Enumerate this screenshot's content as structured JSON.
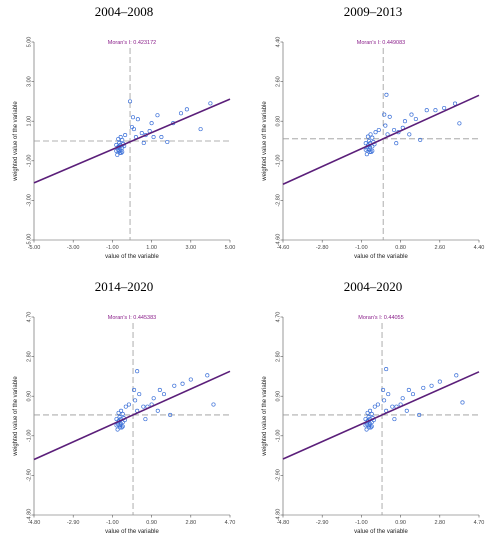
{
  "chart_data": [
    {
      "type": "scatter",
      "title": "2004–2008",
      "annotation": "Moran's I: 0.423172",
      "xlabel": "value of the variable",
      "ylabel": "weighted value of the variable",
      "xlim": [
        -5.0,
        5.0
      ],
      "ylim": [
        -5.0,
        5.0
      ],
      "xticks": [
        "-5.00",
        "-3.00",
        "-1.00",
        "1.00",
        "3.00",
        "5.00"
      ],
      "yticks": [
        "5.00",
        "3.00",
        "1.00",
        "-1.00",
        "-3.00",
        "-5.00"
      ],
      "slope": 0.423172,
      "x_ref": -0.1,
      "y_ref": 0.0,
      "x": [
        -0.8,
        -0.7,
        -0.75,
        -0.6,
        -0.65,
        -0.5,
        -0.55,
        -0.7,
        -0.45,
        -0.6,
        -0.8,
        -0.5,
        -0.65,
        -0.72,
        -0.58,
        -0.4,
        -0.62,
        -0.5,
        -0.68,
        -0.35,
        0.1,
        0.3,
        0.5,
        0.2,
        0.7,
        1.0,
        1.3,
        0.6,
        0.9,
        1.5,
        2.1,
        2.5,
        2.8,
        3.5,
        4.0,
        0.05,
        -0.1,
        0.0,
        1.1,
        1.8
      ],
      "y": [
        -0.5,
        -0.3,
        -0.7,
        -0.2,
        -0.5,
        -0.35,
        -0.6,
        0.1,
        -0.15,
        -0.4,
        -0.2,
        -0.55,
        -0.1,
        -0.45,
        0.2,
        -0.25,
        -0.6,
        0.05,
        -0.3,
        0.3,
        0.6,
        1.1,
        0.4,
        0.2,
        0.3,
        0.9,
        1.3,
        -0.1,
        0.5,
        0.2,
        0.9,
        1.4,
        1.6,
        0.6,
        1.9,
        1.2,
        2.0,
        0.7,
        0.2,
        -0.05
      ]
    },
    {
      "type": "scatter",
      "title": "2009–2013",
      "annotation": "Moran's I: 0.449083",
      "xlabel": "value of the variable",
      "ylabel": "weighted value of the variable",
      "xlim": [
        -4.6,
        4.4
      ],
      "ylim": [
        -4.6,
        4.4
      ],
      "xticks": [
        "-4.60",
        "-2.80",
        "-1.00",
        "0.80",
        "2.60",
        "4.40"
      ],
      "yticks": [
        "4.40",
        "2.60",
        "0.80",
        "-1.00",
        "-2.80",
        "-4.60"
      ],
      "slope": 0.449083,
      "x_ref": 0.0,
      "y_ref": 0.0,
      "x": [
        -0.8,
        -0.7,
        -0.75,
        -0.6,
        -0.65,
        -0.5,
        -0.55,
        -0.7,
        -0.45,
        -0.6,
        -0.8,
        -0.5,
        -0.65,
        -0.72,
        -0.58,
        -0.4,
        -0.62,
        -0.5,
        -0.68,
        -0.35,
        0.1,
        0.3,
        0.5,
        0.2,
        0.7,
        1.0,
        1.3,
        0.6,
        0.9,
        1.5,
        2.0,
        2.4,
        2.8,
        3.3,
        3.5,
        0.05,
        0.15,
        1.2,
        1.7,
        -0.2
      ],
      "y": [
        -0.5,
        -0.3,
        -0.7,
        -0.2,
        -0.5,
        -0.35,
        -0.6,
        0.1,
        -0.15,
        -0.4,
        -0.2,
        -0.55,
        -0.1,
        -0.45,
        0.2,
        -0.25,
        -0.6,
        0.05,
        -0.3,
        0.3,
        0.6,
        1.0,
        0.4,
        0.2,
        0.3,
        0.8,
        1.1,
        -0.2,
        0.5,
        0.9,
        1.3,
        1.3,
        1.4,
        1.6,
        0.7,
        1.1,
        2.0,
        0.2,
        -0.05,
        0.4
      ]
    },
    {
      "type": "scatter",
      "title": "2014–2020",
      "annotation": "Moran's I: 0.445383",
      "xlabel": "value of the variable",
      "ylabel": "weighted value of the variable",
      "xlim": [
        -4.8,
        4.7
      ],
      "ylim": [
        -4.8,
        4.7
      ],
      "xticks": [
        "-4.80",
        "-2.90",
        "-1.00",
        "0.90",
        "2.80",
        "4.70"
      ],
      "yticks": [
        "4.70",
        "2.80",
        "0.90",
        "-1.00",
        "-2.90",
        "-4.80"
      ],
      "slope": 0.445383,
      "x_ref": 0.0,
      "y_ref": 0.0,
      "x": [
        -0.8,
        -0.7,
        -0.75,
        -0.6,
        -0.65,
        -0.5,
        -0.55,
        -0.7,
        -0.45,
        -0.6,
        -0.8,
        -0.5,
        -0.65,
        -0.72,
        -0.58,
        -0.4,
        -0.62,
        -0.5,
        -0.68,
        -0.35,
        0.1,
        0.3,
        0.5,
        0.2,
        0.7,
        1.0,
        1.3,
        0.6,
        0.9,
        1.5,
        2.0,
        2.4,
        2.8,
        3.6,
        3.9,
        0.05,
        0.2,
        1.2,
        1.8,
        -0.2
      ],
      "y": [
        -0.5,
        -0.3,
        -0.7,
        -0.2,
        -0.5,
        -0.35,
        -0.6,
        0.1,
        -0.15,
        -0.4,
        -0.2,
        -0.55,
        -0.1,
        -0.45,
        0.2,
        -0.25,
        -0.6,
        0.05,
        -0.3,
        0.4,
        0.7,
        1.0,
        0.4,
        0.2,
        0.4,
        0.8,
        1.2,
        -0.2,
        0.5,
        1.0,
        1.4,
        1.5,
        1.7,
        1.9,
        0.5,
        1.2,
        2.1,
        0.2,
        0.0,
        0.5
      ]
    },
    {
      "type": "scatter",
      "title": "2004–2020",
      "annotation": "Moran's I: 0.44055",
      "xlabel": "value of the variable",
      "ylabel": "weighted value of the variable",
      "xlim": [
        -4.8,
        4.7
      ],
      "ylim": [
        -4.8,
        4.7
      ],
      "xticks": [
        "-4.80",
        "-2.90",
        "-1.00",
        "0.90",
        "2.80",
        "4.70"
      ],
      "yticks": [
        "4.70",
        "2.80",
        "0.90",
        "-1.00",
        "-2.90",
        "-4.80"
      ],
      "slope": 0.44055,
      "x_ref": 0.0,
      "y_ref": 0.0,
      "x": [
        -0.8,
        -0.7,
        -0.75,
        -0.6,
        -0.65,
        -0.5,
        -0.55,
        -0.7,
        -0.45,
        -0.6,
        -0.8,
        -0.5,
        -0.65,
        -0.72,
        -0.58,
        -0.4,
        -0.62,
        -0.5,
        -0.68,
        -0.35,
        0.1,
        0.3,
        0.5,
        0.2,
        0.7,
        1.0,
        1.3,
        0.6,
        0.9,
        1.5,
        2.0,
        2.4,
        2.8,
        3.6,
        3.9,
        0.05,
        0.2,
        1.2,
        1.8,
        -0.2
      ],
      "y": [
        -0.5,
        -0.3,
        -0.7,
        -0.2,
        -0.5,
        -0.35,
        -0.6,
        0.1,
        -0.15,
        -0.4,
        -0.2,
        -0.55,
        -0.1,
        -0.45,
        0.2,
        -0.25,
        -0.6,
        0.05,
        -0.3,
        0.4,
        0.7,
        1.0,
        0.4,
        0.2,
        0.4,
        0.8,
        1.2,
        -0.2,
        0.5,
        1.0,
        1.3,
        1.4,
        1.6,
        1.9,
        0.6,
        1.2,
        2.2,
        0.2,
        0.0,
        0.5
      ]
    }
  ],
  "colors": {
    "point": "#3a6fd8",
    "fit_line": "#5b1f7a",
    "reference_line": "#999999",
    "annotation": "#8a1e8a"
  }
}
